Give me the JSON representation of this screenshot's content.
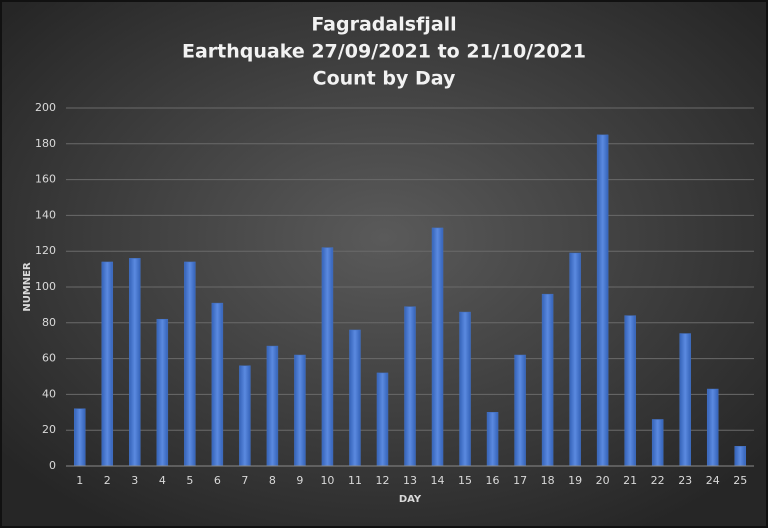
{
  "chart_data": {
    "type": "bar",
    "title": [
      "Fagradalsfjall",
      "Earthquake 27/09/2021 to 21/10/2021",
      "Count by Day"
    ],
    "x_label": "DAY",
    "y_label": "NUMNER",
    "categories": [
      1,
      2,
      3,
      4,
      5,
      6,
      7,
      8,
      9,
      10,
      11,
      12,
      13,
      14,
      15,
      16,
      17,
      18,
      19,
      20,
      21,
      22,
      23,
      24,
      25
    ],
    "values": [
      32,
      114,
      116,
      82,
      114,
      91,
      56,
      67,
      62,
      122,
      76,
      52,
      89,
      133,
      86,
      30,
      62,
      96,
      119,
      185,
      84,
      26,
      74,
      43,
      11
    ],
    "color": "#4472c4",
    "ylim": [
      0,
      200
    ],
    "yticks": [
      0,
      20,
      40,
      60,
      80,
      100,
      120,
      140,
      160,
      180,
      200
    ],
    "grid": true
  }
}
